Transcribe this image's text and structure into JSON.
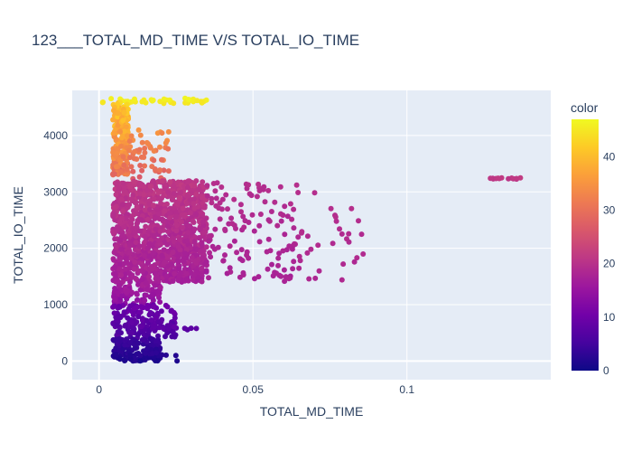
{
  "chart_data": {
    "type": "scatter",
    "title": "123___TOTAL_MD_TIME V/S TOTAL_IO_TIME",
    "xlabel": "TOTAL_MD_TIME",
    "ylabel": "TOTAL_IO_TIME",
    "xlim": [
      -0.0087,
      0.1467
    ],
    "ylim": [
      -330,
      4800
    ],
    "x_ticks": [
      0,
      0.05,
      0.1
    ],
    "x_tick_labels": [
      "0",
      "0.05",
      "0.1"
    ],
    "y_ticks": [
      0,
      1000,
      2000,
      3000,
      4000
    ],
    "y_tick_labels": [
      "0",
      "1000",
      "2000",
      "3000",
      "4000"
    ],
    "grid": true,
    "colorbar": {
      "title": "color",
      "range": [
        0,
        47
      ],
      "ticks": [
        0,
        10,
        20,
        30,
        40
      ],
      "tick_labels": [
        "0",
        "10",
        "20",
        "30",
        "40"
      ],
      "colorscale": [
        "#0d0887",
        "#46039f",
        "#7201a8",
        "#9c179e",
        "#bd3786",
        "#d8576b",
        "#ed7953",
        "#fb9f3a",
        "#fdca26",
        "#f0f921"
      ]
    },
    "marker_style": {
      "size": 3,
      "opacity": 1
    },
    "point_clusters": [
      {
        "x_range": [
          0.001,
          0.035
        ],
        "y_range": [
          4560,
          4660
        ],
        "color_range": [
          44,
          47
        ],
        "n": 45
      },
      {
        "x_range": [
          0.0045,
          0.0095
        ],
        "y_range": [
          3300,
          4600
        ],
        "color_range": [
          28,
          44
        ],
        "n": 220
      },
      {
        "x_range": [
          0.0095,
          0.023
        ],
        "y_range": [
          3200,
          4100
        ],
        "color_range": [
          26,
          36
        ],
        "n": 55
      },
      {
        "x_range": [
          0.0045,
          0.035
        ],
        "y_range": [
          1400,
          3200
        ],
        "color_range": [
          16,
          22
        ],
        "n": 1200
      },
      {
        "x_range": [
          0.035,
          0.065
        ],
        "y_range": [
          1400,
          3200
        ],
        "color_range": [
          17,
          20
        ],
        "n": 130
      },
      {
        "x_range": [
          0.065,
          0.088
        ],
        "y_range": [
          1400,
          3050
        ],
        "color_range": [
          18,
          20
        ],
        "n": 30
      },
      {
        "x_range": [
          0.127,
          0.137
        ],
        "y_range": [
          3225,
          3250
        ],
        "color_range": [
          20,
          22
        ],
        "n": 14
      },
      {
        "x_range": [
          0.0045,
          0.02
        ],
        "y_range": [
          1000,
          1400
        ],
        "color_range": [
          13,
          18
        ],
        "n": 90
      },
      {
        "x_range": [
          0.0045,
          0.025
        ],
        "y_range": [
          400,
          1000
        ],
        "color_range": [
          5,
          11
        ],
        "n": 160
      },
      {
        "x_range": [
          0.0045,
          0.02
        ],
        "y_range": [
          0,
          400
        ],
        "color_range": [
          1,
          5
        ],
        "n": 160
      },
      {
        "x_range": [
          0.013,
          0.032
        ],
        "y_range": [
          550,
          620
        ],
        "color_range": [
          7,
          9
        ],
        "n": 14
      },
      {
        "x_range": [
          0.02,
          0.026
        ],
        "y_range": [
          0,
          150
        ],
        "color_range": [
          1,
          3
        ],
        "n": 4
      }
    ]
  }
}
